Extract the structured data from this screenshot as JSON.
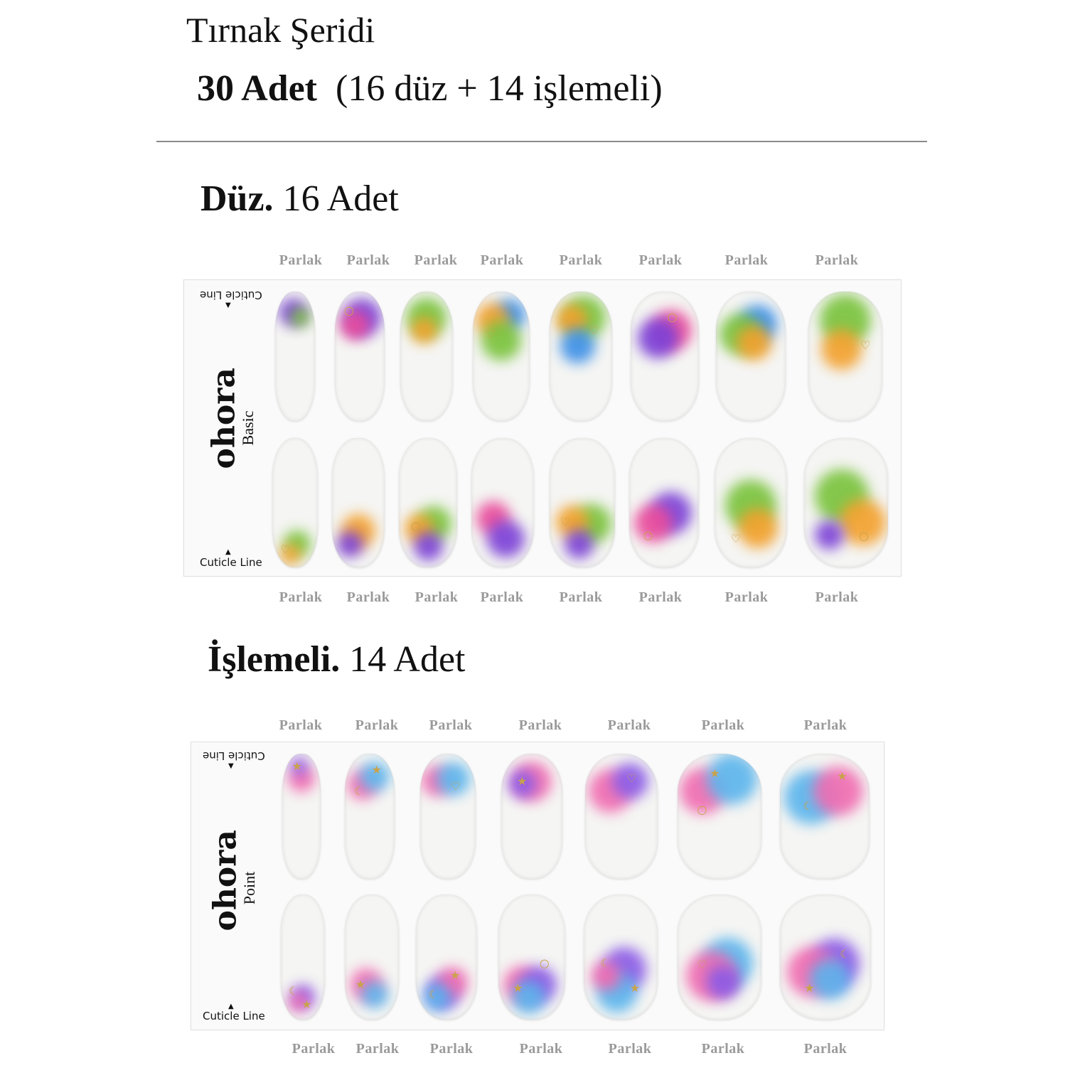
{
  "header": {
    "title": "Tırnak Şeridi",
    "count_bold": "30 Adet",
    "count_rest": "(16 düz + 14 işlemeli)"
  },
  "basic_section": {
    "heading_bold": "Düz.",
    "heading_rest": "16 Adet",
    "top_labels": [
      "Parlak",
      "Parlak",
      "Parlak",
      "Parlak",
      "Parlak",
      "Parlak",
      "Parlak",
      "Parlak"
    ],
    "bottom_labels": [
      "Parlak",
      "Parlak",
      "Parlak",
      "Parlak",
      "Parlak",
      "Parlak",
      "Parlak",
      "Parlak"
    ],
    "sheet": {
      "brand": "ohora",
      "line": "Basic",
      "cuticle_top": "Cuticle Line",
      "cuticle_bottom": "Cuticle Line"
    }
  },
  "point_section": {
    "heading_bold": "İşlemeli.",
    "heading_rest": "14 Adet",
    "top_labels": [
      "Parlak",
      "Parlak",
      "Parlak",
      "Parlak",
      "Parlak",
      "Parlak",
      "Parlak"
    ],
    "bottom_labels": [
      "Parlak",
      "Parlak",
      "Parlak",
      "Parlak",
      "Parlak",
      "Parlak",
      "Parlak"
    ],
    "sheet": {
      "brand": "ohora",
      "line": "Point",
      "cuticle_top": "Cuticle Line",
      "cuticle_bottom": "Cuticle Line"
    }
  },
  "colors": {
    "label_gray": "#9a9a9a",
    "divider": "#8a8a8a",
    "gold": "#c9a24a",
    "basic_palette": [
      "#7a3fd6",
      "#e94a9a",
      "#78c23a",
      "#f3a02c",
      "#3a8ee6"
    ],
    "point_palette": [
      "#f06bb0",
      "#5ab4ec",
      "#8a5ae6"
    ]
  },
  "icons": [
    "heart-icon",
    "ring-icon",
    "star-icon",
    "moon-icon",
    "cuticle-arrow-icon"
  ]
}
